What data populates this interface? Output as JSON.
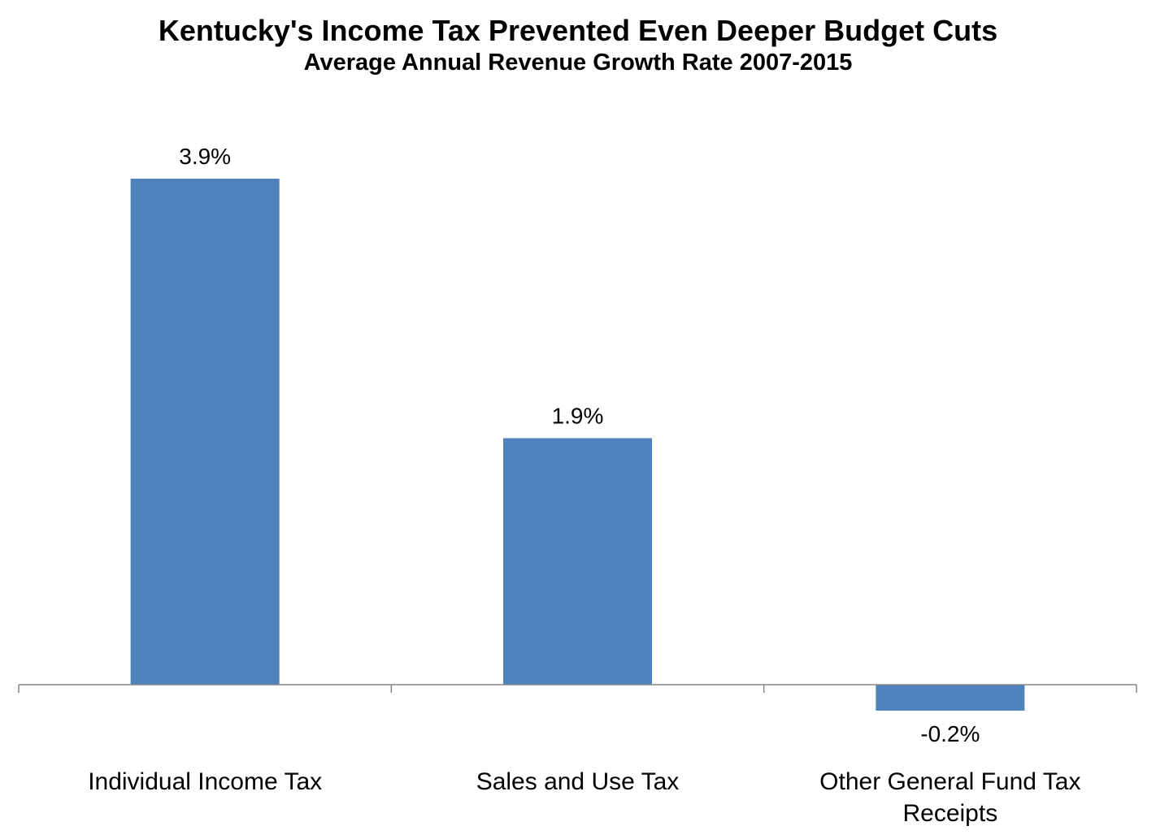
{
  "chart_data": {
    "type": "bar",
    "title": "Kentucky's Income Tax Prevented Even Deeper Budget Cuts",
    "subtitle": "Average Annual Revenue Growth Rate 2007-2015",
    "categories": [
      [
        "Individual Income Tax"
      ],
      [
        "Sales and Use Tax"
      ],
      [
        "Other General Fund Tax",
        "Receipts"
      ]
    ],
    "values": [
      3.9,
      1.9,
      -0.2
    ],
    "data_labels": [
      "3.9%",
      "1.9%",
      "-0.2%"
    ],
    "ylim": [
      -0.3,
      4.2
    ],
    "grid": false,
    "legend": "none",
    "colors": {
      "bar": "#4F81BD",
      "axis": "#868686"
    }
  }
}
